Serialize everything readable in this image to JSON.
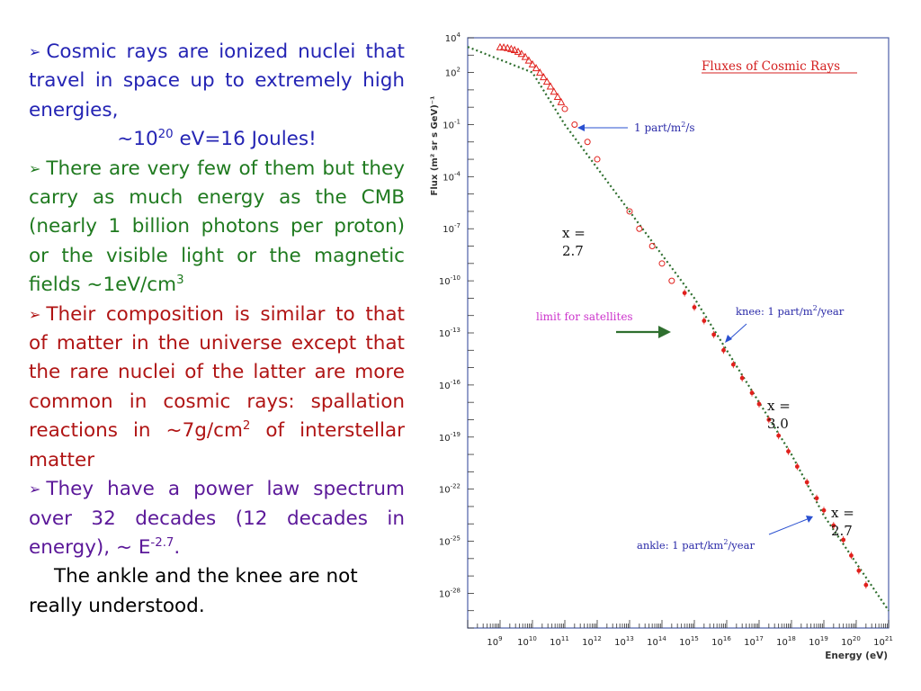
{
  "text": {
    "b1_line1": "Cosmic rays are ionized nuclei that travel in space up to extremely high energies,",
    "b1_energy_pre": "~10",
    "b1_energy_exp": "20",
    "b1_energy_post": " eV=16 Joules!",
    "b2_text": "There are very few of them but they carry as much energy as the CMB (nearly 1 billion photons per proton) or the visible light or the magnetic fields ~1eV/cm",
    "b2_exp": "3",
    "b3_text": "Their composition is similar to that of matter in the universe except that the rare nuclei of the latter are more common in cosmic rays: spallation reactions in ~7g/cm",
    "b3_exp": "2",
    "b3_tail": " of interstellar matter",
    "b4_text": "They have a power law spectrum over 32 decades (12 decades in energy), ~ E",
    "b4_exp": "-2.7",
    "b4_tail": ".",
    "closing": "The ankle and the knee are not really understood."
  },
  "colors": {
    "blue": "#2424b4",
    "green": "#1f7a1f",
    "red": "#b01414",
    "purple": "#5b1899",
    "chart_red": "#e0201c",
    "chart_green": "#2f6f2f",
    "chart_title_red": "#d42020",
    "magenta": "#cc33cc",
    "arrow_blue": "#2a50d0"
  },
  "chart_data": {
    "type": "scatter",
    "title": "Fluxes of Cosmic Rays",
    "xlabel": "Energy (eV)",
    "ylabel": "Flux (m² sr s GeV)⁻¹",
    "x_scale": "log",
    "y_scale": "log",
    "xlim": [
      100000000.0,
      1e+21
    ],
    "ylim": [
      1e-30,
      10000.0
    ],
    "x_ticks": [
      {
        "base": "10",
        "exp": "9",
        "value": 1000000000.0
      },
      {
        "base": "10",
        "exp": "10",
        "value": 10000000000.0
      },
      {
        "base": "10",
        "exp": "11",
        "value": 100000000000.0
      },
      {
        "base": "10",
        "exp": "12",
        "value": 1000000000000.0
      },
      {
        "base": "10",
        "exp": "13",
        "value": 10000000000000.0
      },
      {
        "base": "10",
        "exp": "14",
        "value": 100000000000000.0
      },
      {
        "base": "10",
        "exp": "15",
        "value": 1000000000000000.0
      },
      {
        "base": "10",
        "exp": "16",
        "value": 1e+16
      },
      {
        "base": "10",
        "exp": "17",
        "value": 1e+17
      },
      {
        "base": "10",
        "exp": "18",
        "value": 1e+18
      },
      {
        "base": "10",
        "exp": "19",
        "value": 1e+19
      },
      {
        "base": "10",
        "exp": "20",
        "value": 1e+20
      },
      {
        "base": "10",
        "exp": "21",
        "value": 1e+21
      }
    ],
    "y_ticks": [
      {
        "base": "10",
        "exp": "4",
        "value": 10000.0
      },
      {
        "base": "10",
        "exp": "2",
        "value": 100.0
      },
      {
        "base": "10",
        "exp": "-1",
        "value": 0.1
      },
      {
        "base": "10",
        "exp": "-4",
        "value": 0.0001
      },
      {
        "base": "10",
        "exp": "-7",
        "value": 1e-07
      },
      {
        "base": "10",
        "exp": "-10",
        "value": 1e-10
      },
      {
        "base": "10",
        "exp": "-13",
        "value": 1e-13
      },
      {
        "base": "10",
        "exp": "-16",
        "value": 1e-16
      },
      {
        "base": "10",
        "exp": "-19",
        "value": 1e-19
      },
      {
        "base": "10",
        "exp": "-22",
        "value": 1e-22
      },
      {
        "base": "10",
        "exp": "-25",
        "value": 1e-25
      },
      {
        "base": "10",
        "exp": "-28",
        "value": 1e-28
      }
    ],
    "reference_line": [
      [
        100000000.0,
        3000.0
      ],
      [
        10000000000.0,
        100.0
      ],
      [
        100000000000.0,
        0.1
      ],
      [
        1000000000000000.0,
        1e-11
      ],
      [
        1e+18,
        1e-20
      ],
      [
        1e+19,
        3e-24
      ],
      [
        1e+21,
        1e-29
      ]
    ],
    "series": [
      {
        "marker": "triangle",
        "points": [
          [
            1000000000.0,
            2900.0
          ],
          [
            1300000000.0,
            2800.0
          ],
          [
            1700000000.0,
            2600.0
          ],
          [
            2200000000.0,
            2300.0
          ],
          [
            2800000000.0,
            2000.0
          ],
          [
            3600000000.0,
            1600.0
          ],
          [
            4600000000.0,
            1200.0
          ],
          [
            6000000000.0,
            800.0
          ],
          [
            7700000000.0,
            500.0
          ],
          [
            10000000000.0,
            300.0
          ],
          [
            13000000000.0,
            180.0
          ],
          [
            17000000000.0,
            100.0
          ],
          [
            22000000000.0,
            55.0
          ],
          [
            28000000000.0,
            30.0
          ],
          [
            36000000000.0,
            16.0
          ],
          [
            46000000000.0,
            8
          ],
          [
            60000000000.0,
            4
          ],
          [
            77000000000.0,
            2
          ]
        ]
      },
      {
        "marker": "circle",
        "points": [
          [
            100000000000.0,
            0.8
          ],
          [
            200000000000.0,
            0.1
          ],
          [
            500000000000.0,
            0.01
          ],
          [
            1000000000000.0,
            0.001
          ],
          [
            10000000000000.0,
            1e-06
          ],
          [
            20000000000000.0,
            1e-07
          ],
          [
            50000000000000.0,
            1e-08
          ],
          [
            100000000000000.0,
            1e-09
          ],
          [
            200000000000000.0,
            1e-10
          ]
        ]
      },
      {
        "marker": "dot",
        "points": [
          [
            500000000000000.0,
            2e-11
          ],
          [
            1000000000000000.0,
            3e-12
          ],
          [
            2000000000000000.0,
            5e-13
          ],
          [
            4000000000000000.0,
            8e-14
          ],
          [
            8000000000000000.0,
            1e-14
          ],
          [
            1.6e+16,
            1.5e-15
          ],
          [
            3e+16,
            2.5e-16
          ],
          [
            6e+16,
            3.5e-17
          ],
          [
            1e+17,
            8e-18
          ],
          [
            2e+17,
            1e-18
          ],
          [
            4e+17,
            1.2e-19
          ],
          [
            8e+17,
            1.5e-20
          ],
          [
            1.5e+18,
            2e-21
          ],
          [
            3e+18,
            2.5e-22
          ],
          [
            6e+18,
            3e-23
          ],
          [
            1e+19,
            6e-24
          ],
          [
            2e+19,
            8e-25
          ],
          [
            4e+19,
            1.2e-25
          ],
          [
            7e+19,
            1.5e-26
          ],
          [
            1.2e+20,
            2e-27
          ],
          [
            2e+20,
            3e-28
          ]
        ]
      }
    ],
    "annotations": {
      "one_part_m2s": {
        "text": "1 part/m²/s",
        "pre": "1 part/m",
        "sup": "2",
        "post": "/s"
      },
      "knee": {
        "text": "knee: 1 part/m²/year",
        "pre": "knee: 1 part/m",
        "sup": "2",
        "post": "/year"
      },
      "ankle": {
        "text": "ankle: 1 part/km²/year",
        "pre": "ankle: 1 part/km",
        "sup": "2",
        "post": "/year"
      },
      "satellites": {
        "text": "limit for satellites"
      },
      "x_labels": [
        {
          "line1": "x =",
          "line2": "2.7"
        },
        {
          "line1": "x =",
          "line2": "3.0"
        },
        {
          "line1": "x =",
          "line2": "2.7"
        }
      ]
    },
    "grid": false
  }
}
